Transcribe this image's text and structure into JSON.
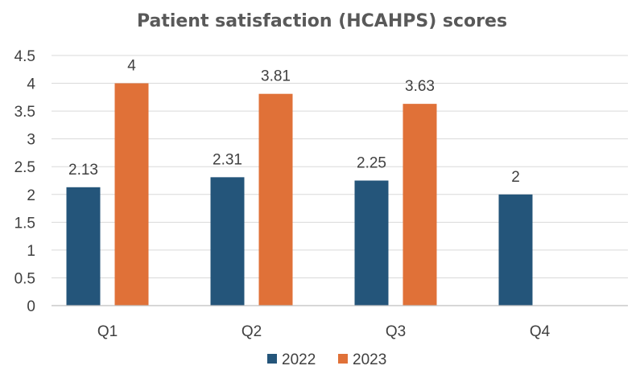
{
  "chart_data": {
    "type": "bar",
    "title": "Patient satisfaction (HCAHPS) scores",
    "categories": [
      "Q1",
      "Q2",
      "Q3",
      "Q4"
    ],
    "series": [
      {
        "name": "2022",
        "color": "#24557a",
        "values": [
          2.13,
          2.31,
          2.25,
          2
        ],
        "labels": [
          "2.13",
          "2.31",
          "2.25",
          "2"
        ]
      },
      {
        "name": "2023",
        "color": "#e07138",
        "values": [
          4,
          3.81,
          3.63,
          null
        ],
        "labels": [
          "4",
          "3.81",
          "3.63",
          ""
        ]
      }
    ],
    "ylim": [
      0,
      4.5
    ],
    "yticks": [
      "0",
      "0.5",
      "1",
      "1.5",
      "2",
      "2.5",
      "3",
      "3.5",
      "4",
      "4.5"
    ],
    "grid": true,
    "legend": "bottom"
  }
}
